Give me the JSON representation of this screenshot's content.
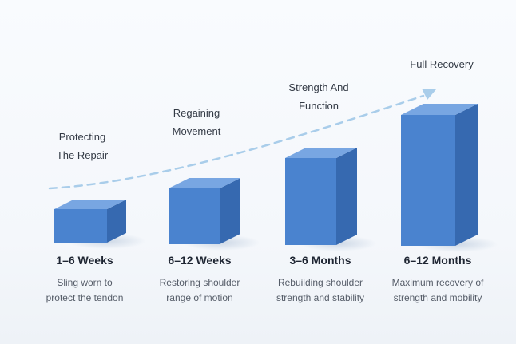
{
  "stages": [
    {
      "label": "Protecting The Repair",
      "label_lines": [
        "Protecting",
        "The Repair"
      ],
      "period": "1–6 Weeks",
      "description": "Sling worn to protect the tendon",
      "desc_lines": [
        "Sling worn to",
        "protect the tendon"
      ]
    },
    {
      "label": "Regaining Movement",
      "label_lines": [
        "Regaining",
        "Movement"
      ],
      "period": "6–12 Weeks",
      "description": "Restoring shoulder range of motion",
      "desc_lines": [
        "Restoring shoulder",
        "range of motion"
      ]
    },
    {
      "label": "Strength And Function",
      "label_lines": [
        "Strength And",
        "Function"
      ],
      "period": "3–6 Months",
      "description": "Rebuilding shoulder strength and stability",
      "desc_lines": [
        "Rebuilding shoulder",
        "strength and stability"
      ]
    },
    {
      "label": "Full Recovery",
      "label_lines": [
        "Full Recovery"
      ],
      "period": "6–12 Months",
      "description": "Maximum recovery of strength and mobility",
      "desc_lines": [
        "Maximum recovery of",
        "strength and mobility"
      ]
    }
  ],
  "colors": {
    "block_front": "#4a83cf",
    "block_top": "#78a6e2",
    "block_side": "#3669b0",
    "arrow": "#a9cdea"
  }
}
